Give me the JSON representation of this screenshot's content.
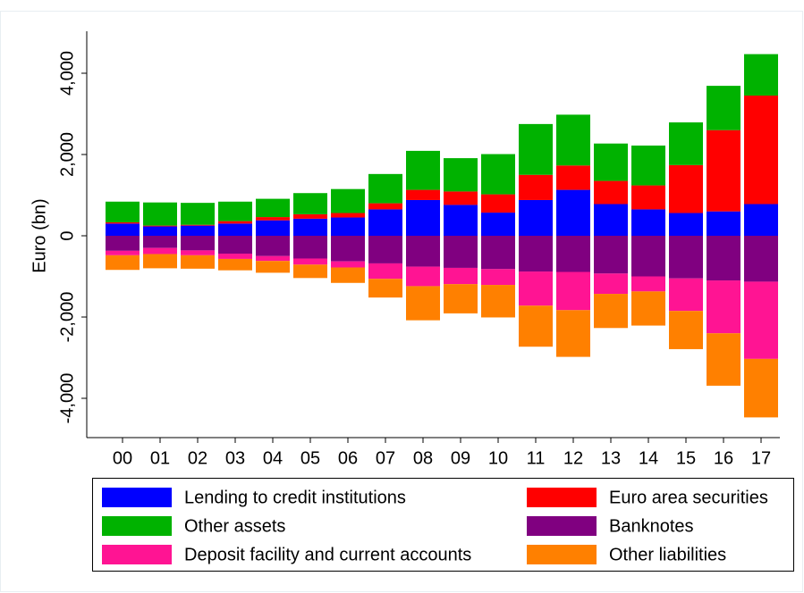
{
  "chart_data": {
    "type": "bar",
    "stacked": true,
    "y_label": "Euro (bn)",
    "categories": [
      "00",
      "01",
      "02",
      "03",
      "04",
      "05",
      "06",
      "07",
      "08",
      "09",
      "10",
      "11",
      "12",
      "13",
      "14",
      "15",
      "16",
      "17"
    ],
    "ylim": [
      -5000,
      5000
    ],
    "yticks": [
      {
        "value": -4000,
        "label": "-4,000"
      },
      {
        "value": -2000,
        "label": "-2,000"
      },
      0,
      {
        "value": 2000,
        "label": "2,000"
      },
      {
        "value": 4000,
        "label": "4,000"
      }
    ],
    "grid": false,
    "series": [
      {
        "name": "Lending to credit institutions",
        "color": "#0000ff",
        "values": [
          300,
          230,
          250,
          300,
          380,
          420,
          450,
          650,
          880,
          760,
          570,
          880,
          1130,
          780,
          650,
          560,
          600,
          780
        ]
      },
      {
        "name": "Euro area securities",
        "color": "#ff0000",
        "values": [
          30,
          20,
          20,
          60,
          80,
          110,
          110,
          150,
          250,
          330,
          450,
          620,
          600,
          570,
          590,
          1180,
          2000,
          2670
        ]
      },
      {
        "name": "Other assets",
        "color": "#00b200",
        "values": [
          510,
          570,
          540,
          480,
          450,
          520,
          590,
          720,
          960,
          820,
          990,
          1250,
          1250,
          920,
          980,
          1050,
          1090,
          1020
        ]
      },
      {
        "name": "Banknotes",
        "color": "#800080",
        "values": [
          -370,
          -300,
          -360,
          -440,
          -500,
          -560,
          -630,
          -680,
          -760,
          -790,
          -820,
          -880,
          -890,
          -930,
          -1000,
          -1050,
          -1100,
          -1130
        ]
      },
      {
        "name": "Deposit facility and current accounts",
        "color": "#ff1493",
        "values": [
          -110,
          -150,
          -120,
          -130,
          -120,
          -150,
          -150,
          -380,
          -480,
          -400,
          -390,
          -840,
          -940,
          -500,
          -370,
          -800,
          -1300,
          -1900
        ]
      },
      {
        "name": "Other liabilities",
        "color": "#ff8000",
        "values": [
          -360,
          -350,
          -330,
          -280,
          -290,
          -330,
          -380,
          -460,
          -840,
          -720,
          -800,
          -1010,
          -1150,
          -840,
          -840,
          -940,
          -1290,
          -1440
        ]
      }
    ]
  }
}
